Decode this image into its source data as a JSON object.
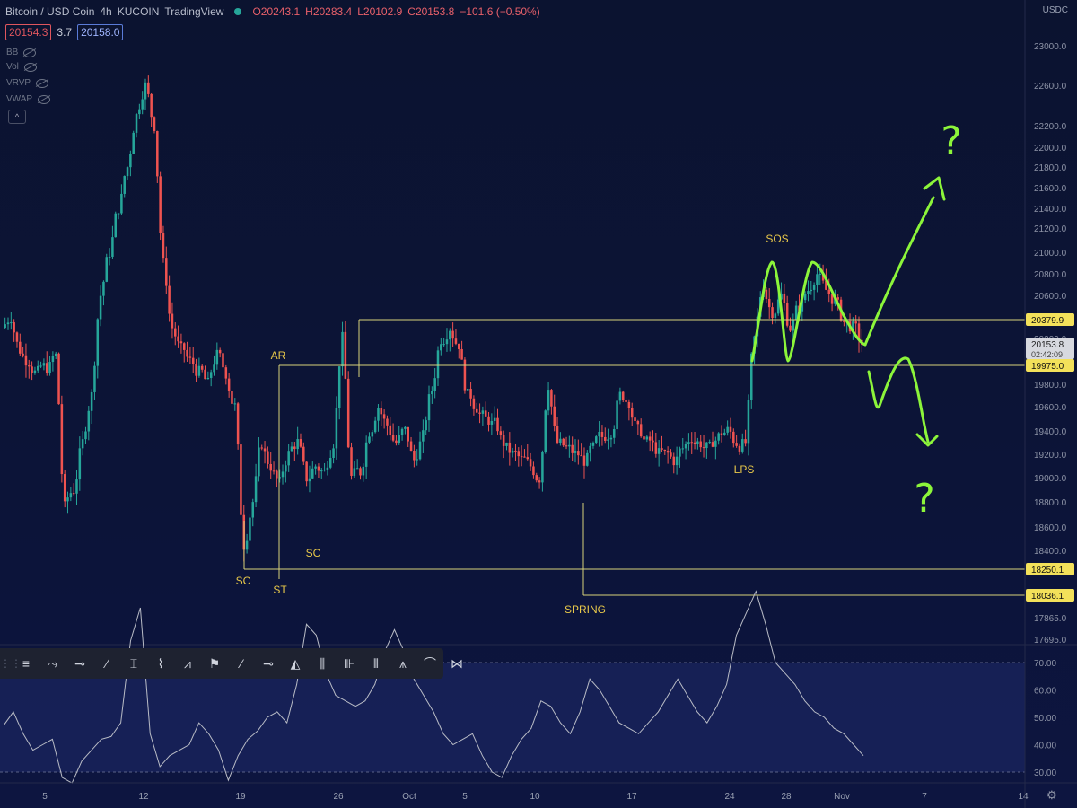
{
  "header": {
    "symbol": "Bitcoin / USD Coin",
    "interval": "4h",
    "exchange": "KUCOIN",
    "source": "TradingView",
    "open": "O20243.1",
    "high": "H20283.4",
    "low": "L20102.9",
    "close": "C20153.8",
    "change": "−101.6 (−0.50%)",
    "bid": "20154.3",
    "spread": "3.7",
    "ask": "20158.0"
  },
  "indicators": [
    {
      "name": "BB",
      "icon": "eye-off-icon"
    },
    {
      "name": "Vol",
      "icon": "eye-off-icon"
    },
    {
      "name": "VRVP",
      "icon": "eye-off-icon"
    },
    {
      "name": "VWAP",
      "icon": "eye-off-icon"
    }
  ],
  "currency": "USDC",
  "colors": {
    "background": "#0c1330",
    "up": "#26a69a",
    "down": "#ef5350",
    "level_line": "#d8d27a",
    "label_text": "#e8c84a",
    "drawing": "#8cf53a",
    "rsi_line": "#b9bcc6",
    "rsi_band": "#1f2a6a"
  },
  "toolbar": {
    "tools": [
      "lines-tool-icon",
      "pitchfork-tool-icon",
      "horizontal-ray-icon",
      "trend-line-icon",
      "cursor-tool-icon",
      "path-tool-icon",
      "fib-tool-icon",
      "flag-tool-icon",
      "ray-icon",
      "horizontal-line-icon",
      "gann-fan-icon",
      "bars-pattern-icon",
      "candles-icon",
      "columns-icon",
      "forecast-icon",
      "brush-icon",
      "xabcd-pattern-icon"
    ]
  },
  "chart_data": {
    "type": "candlestick",
    "price_axis": {
      "ticks": [
        "23000.0",
        "22600.0",
        "22200.0",
        "22000.0",
        "21800.0",
        "21600.0",
        "21400.0",
        "21200.0",
        "21000.0",
        "20800.0",
        "20600.0",
        "20400.0",
        "20200.0",
        "19800.0",
        "19600.0",
        "19400.0",
        "19200.0",
        "19000.0",
        "18800.0",
        "18600.0",
        "18400.0",
        "17865.0",
        "17695.0"
      ],
      "current_price": "20153.8",
      "countdown": "02:42:09",
      "ylim": [
        17600,
        23200
      ]
    },
    "level_labels": [
      {
        "value": "20379.9"
      },
      {
        "value": "19975.0"
      },
      {
        "value": "18250.1"
      },
      {
        "value": "18036.1"
      }
    ],
    "annotations": [
      "SC",
      "ST",
      "SC",
      "AR",
      "SPRING",
      "LPS",
      "SOS"
    ],
    "question_marks": [
      "?",
      "?"
    ],
    "x_axis_ticks": [
      "5",
      "12",
      "19",
      "26",
      "Oct",
      "5",
      "10",
      "17",
      "24",
      "28",
      "Nov",
      "7",
      "14"
    ],
    "rsi": {
      "ticks": [
        "70.00",
        "60.00",
        "50.00",
        "40.00",
        "30.00"
      ],
      "upper_band": 70,
      "lower_band": 30,
      "values": [
        47,
        52,
        44,
        38,
        40,
        42,
        28,
        26,
        34,
        38,
        42,
        43,
        48,
        78,
        90,
        44,
        32,
        36,
        38,
        40,
        48,
        44,
        38,
        27,
        36,
        42,
        45,
        50,
        52,
        48,
        62,
        84,
        80,
        66,
        58,
        56,
        54,
        56,
        62,
        74,
        82,
        74,
        64,
        58,
        52,
        44,
        40,
        42,
        44,
        36,
        30,
        28,
        36,
        42,
        46,
        56,
        54,
        48,
        44,
        52,
        64,
        60,
        54,
        48,
        46,
        44,
        48,
        52,
        58,
        64,
        58,
        52,
        48,
        54,
        62,
        80,
        88,
        96,
        84,
        70,
        66,
        62,
        56,
        52,
        50,
        46,
        44,
        40,
        36
      ]
    },
    "candles_close_series": [
      20400,
      20100,
      20000,
      19900,
      19950,
      20050,
      18750,
      18900,
      19300,
      19700,
      20600,
      21000,
      21400,
      21800,
      22300,
      22600,
      22200,
      20900,
      20300,
      20100,
      20000,
      19900,
      19800,
      20050,
      19900,
      19600,
      18450,
      18800,
      19300,
      19100,
      18950,
      19200,
      19300,
      19000,
      19100,
      19050,
      19300,
      20200,
      19000,
      19050,
      19400,
      19600,
      19450,
      19300,
      19400,
      19150,
      19350,
      19750,
      20200,
      20300,
      20150,
      19700,
      19600,
      19500,
      19450,
      19300,
      19200,
      19150,
      19100,
      19000,
      19800,
      19300,
      19250,
      19200,
      19150,
      19250,
      19350,
      19400,
      19700,
      19650,
      19400,
      19300,
      19250,
      19200,
      19150,
      19250,
      19350,
      19300,
      19250,
      19350,
      19400,
      19300,
      19300,
      20200,
      20700,
      20450,
      20600,
      20300,
      20500,
      20650,
      20800,
      20650,
      20550,
      20350,
      20300,
      20153.8
    ]
  }
}
